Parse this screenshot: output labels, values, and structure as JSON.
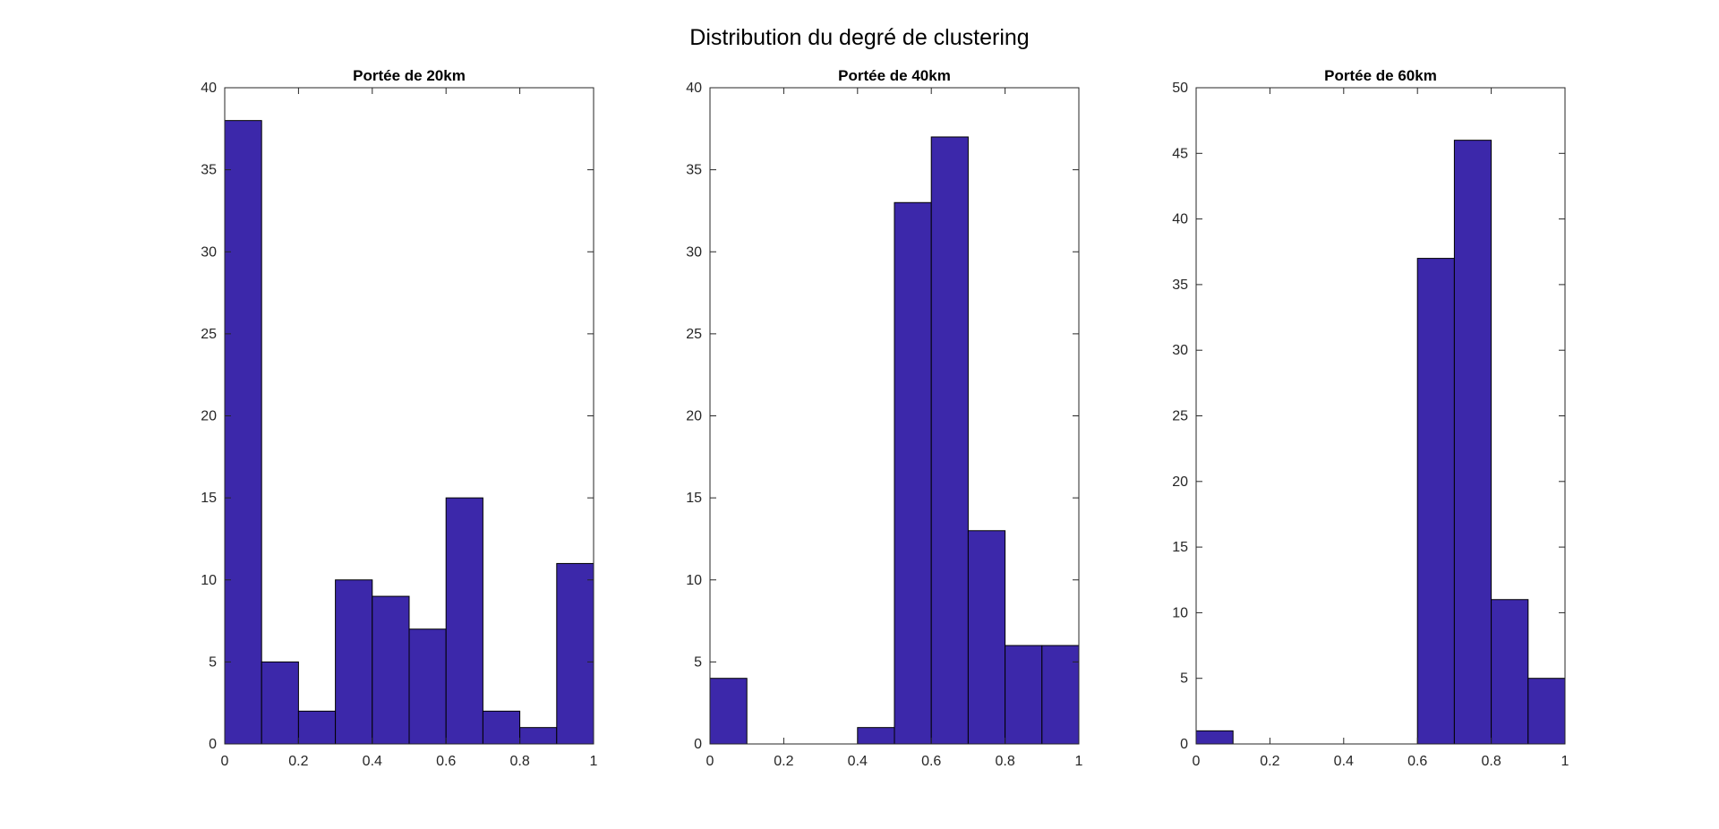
{
  "figure_title": "Distribution du degré de clustering",
  "bar_color": "#3c28aa",
  "chart_data": [
    {
      "type": "bar",
      "title": "Portée de 20km",
      "xlim": [
        0,
        1
      ],
      "ylim": [
        0,
        40
      ],
      "bin_edges": [
        0,
        0.1,
        0.2,
        0.3,
        0.4,
        0.5,
        0.6,
        0.7,
        0.8,
        0.9,
        1.0
      ],
      "values": [
        38,
        5,
        2,
        10,
        9,
        7,
        15,
        2,
        1,
        11
      ],
      "x_ticks": [
        "0",
        "0.2",
        "0.4",
        "0.6",
        "0.8",
        "1"
      ],
      "y_ticks": [
        "0",
        "5",
        "10",
        "15",
        "20",
        "25",
        "30",
        "35",
        "40"
      ]
    },
    {
      "type": "bar",
      "title": "Portée de 40km",
      "xlim": [
        0,
        1
      ],
      "ylim": [
        0,
        40
      ],
      "bin_edges": [
        0,
        0.1,
        0.2,
        0.3,
        0.4,
        0.5,
        0.6,
        0.7,
        0.8,
        0.9,
        1.0
      ],
      "values": [
        4,
        0,
        0,
        0,
        1,
        33,
        37,
        13,
        6,
        6
      ],
      "x_ticks": [
        "0",
        "0.2",
        "0.4",
        "0.6",
        "0.8",
        "1"
      ],
      "y_ticks": [
        "0",
        "5",
        "10",
        "15",
        "20",
        "25",
        "30",
        "35",
        "40"
      ]
    },
    {
      "type": "bar",
      "title": "Portée de 60km",
      "xlim": [
        0,
        1
      ],
      "ylim": [
        0,
        50
      ],
      "bin_edges": [
        0,
        0.1,
        0.2,
        0.3,
        0.4,
        0.5,
        0.6,
        0.7,
        0.8,
        0.9,
        1.0
      ],
      "values": [
        1,
        0,
        0,
        0,
        0,
        0,
        37,
        46,
        11,
        5
      ],
      "x_ticks": [
        "0",
        "0.2",
        "0.4",
        "0.6",
        "0.8",
        "1"
      ],
      "y_ticks": [
        "0",
        "5",
        "10",
        "15",
        "20",
        "25",
        "30",
        "35",
        "40",
        "45",
        "50"
      ]
    }
  ]
}
